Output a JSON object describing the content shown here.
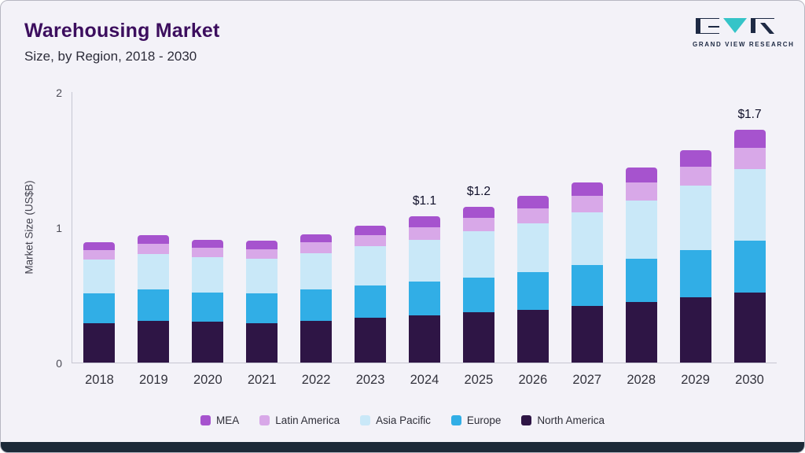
{
  "header": {
    "title": "Warehousing Market",
    "subtitle": "Size, by Region, 2018 - 2030"
  },
  "logo": {
    "text": "GRAND VIEW RESEARCH",
    "navy": "#1e2a44",
    "teal": "#35c4c8"
  },
  "chart_data": {
    "type": "bar",
    "stacked": true,
    "title": "Warehousing Market Size, by Region, 2018 - 2030",
    "xlabel": "",
    "ylabel": "Market Size (US$B)",
    "ylim": [
      0,
      2
    ],
    "yticks": [
      0,
      1,
      2
    ],
    "grid": false,
    "legend_position": "bottom",
    "categories": [
      "2018",
      "2019",
      "2020",
      "2021",
      "2022",
      "2023",
      "2024",
      "2025",
      "2026",
      "2027",
      "2028",
      "2029",
      "2030"
    ],
    "series": [
      {
        "name": "North America",
        "color": "#2e1545",
        "values": [
          0.29,
          0.31,
          0.3,
          0.29,
          0.31,
          0.33,
          0.35,
          0.37,
          0.39,
          0.42,
          0.45,
          0.48,
          0.52
        ]
      },
      {
        "name": "Europe",
        "color": "#31aee6",
        "values": [
          0.22,
          0.23,
          0.22,
          0.22,
          0.23,
          0.24,
          0.25,
          0.26,
          0.28,
          0.3,
          0.32,
          0.35,
          0.38
        ]
      },
      {
        "name": "Asia Pacific",
        "color": "#c9e8f8",
        "values": [
          0.25,
          0.26,
          0.26,
          0.26,
          0.27,
          0.29,
          0.31,
          0.34,
          0.36,
          0.39,
          0.43,
          0.48,
          0.53
        ]
      },
      {
        "name": "Latin America",
        "color": "#d8a8e8",
        "values": [
          0.07,
          0.08,
          0.07,
          0.07,
          0.08,
          0.08,
          0.09,
          0.1,
          0.11,
          0.12,
          0.13,
          0.14,
          0.16
        ]
      },
      {
        "name": "MEA",
        "color": "#a653ce",
        "values": [
          0.06,
          0.06,
          0.06,
          0.06,
          0.06,
          0.07,
          0.08,
          0.08,
          0.09,
          0.1,
          0.11,
          0.12,
          0.13
        ]
      }
    ],
    "annotations": [
      {
        "category": "2024",
        "label": "$1.1"
      },
      {
        "category": "2025",
        "label": "$1.2"
      },
      {
        "category": "2030",
        "label": "$1.7"
      }
    ],
    "legend_order": [
      "MEA",
      "Latin America",
      "Asia Pacific",
      "Europe",
      "North America"
    ]
  }
}
